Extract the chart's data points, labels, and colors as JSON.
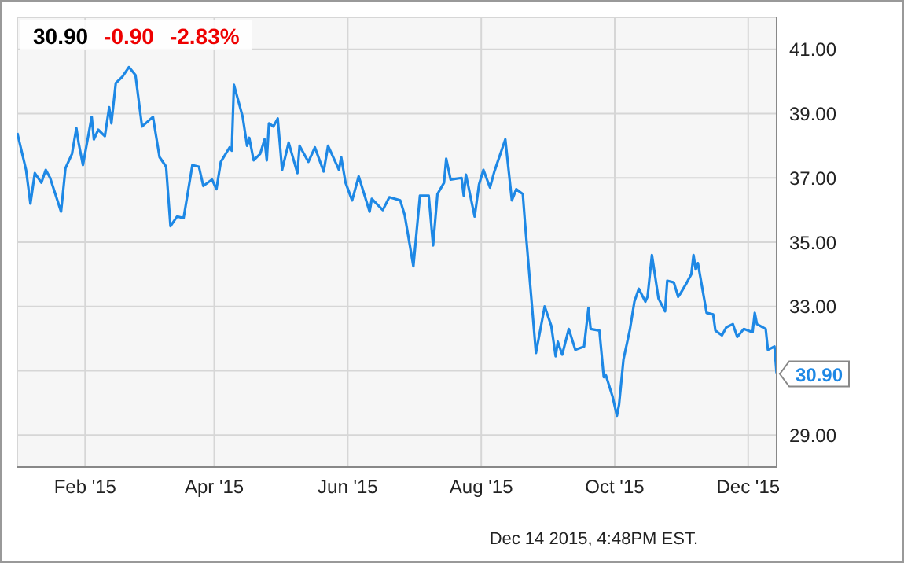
{
  "chart_data": {
    "type": "line",
    "title": "30.90",
    "annotations": [
      "-0.90",
      "-2.83%",
      "Dec 14 2015, 4:48PM EST.",
      {
        "text": "30.90",
        "x": "2015-12-14",
        "y": 30.9
      }
    ],
    "x": [
      "2015-01-01",
      "2015-01-05",
      "2015-01-07",
      "2015-01-09",
      "2015-01-12",
      "2015-01-14",
      "2015-01-16",
      "2015-01-21",
      "2015-01-23",
      "2015-01-26",
      "2015-01-28",
      "2015-01-29",
      "2015-01-31",
      "2015-02-04",
      "2015-02-05",
      "2015-02-07",
      "2015-02-10",
      "2015-02-12",
      "2015-02-13",
      "2015-02-15",
      "2015-02-18",
      "2015-02-21",
      "2015-02-24",
      "2015-02-27",
      "2015-03-04",
      "2015-03-07",
      "2015-03-10",
      "2015-03-12",
      "2015-03-15",
      "2015-03-18",
      "2015-03-22",
      "2015-03-25",
      "2015-03-27",
      "2015-03-31",
      "2015-04-02",
      "2015-04-04",
      "2015-04-08",
      "2015-04-09",
      "2015-04-10",
      "2015-04-14",
      "2015-04-16",
      "2015-04-17",
      "2015-04-19",
      "2015-04-22",
      "2015-04-24",
      "2015-04-25",
      "2015-04-26",
      "2015-04-28",
      "2015-04-30",
      "2015-05-02",
      "2015-05-05",
      "2015-05-09",
      "2015-05-10",
      "2015-05-14",
      "2015-05-17",
      "2015-05-21",
      "2015-05-23",
      "2015-05-28",
      "2015-05-29",
      "2015-05-31",
      "2015-06-03",
      "2015-06-06",
      "2015-06-11",
      "2015-06-12",
      "2015-06-17",
      "2015-06-20",
      "2015-06-25",
      "2015-06-27",
      "2015-07-01",
      "2015-07-04",
      "2015-07-08",
      "2015-07-10",
      "2015-07-12",
      "2015-07-15",
      "2015-07-16",
      "2015-07-18",
      "2015-07-23",
      "2015-07-24",
      "2015-07-25",
      "2015-07-29",
      "2015-07-31",
      "2015-08-02",
      "2015-08-05",
      "2015-08-07",
      "2015-08-12",
      "2015-08-15",
      "2015-08-17",
      "2015-08-20",
      "2015-08-21",
      "2015-08-26",
      "2015-08-30",
      "2015-09-02",
      "2015-09-04",
      "2015-09-05",
      "2015-09-07",
      "2015-09-10",
      "2015-09-13",
      "2015-09-17",
      "2015-09-19",
      "2015-09-20",
      "2015-09-24",
      "2015-09-26",
      "2015-09-27",
      "2015-09-30",
      "2015-10-02",
      "2015-10-03",
      "2015-10-05",
      "2015-10-08",
      "2015-10-10",
      "2015-10-12",
      "2015-10-15",
      "2015-10-16",
      "2015-10-18",
      "2015-10-21",
      "2015-10-24",
      "2015-10-25",
      "2015-10-28",
      "2015-10-30",
      "2015-10-31",
      "2015-11-03",
      "2015-11-05",
      "2015-11-06",
      "2015-11-07",
      "2015-11-08",
      "2015-11-12",
      "2015-11-15",
      "2015-11-16",
      "2015-11-19",
      "2015-11-21",
      "2015-11-24",
      "2015-11-26",
      "2015-11-29",
      "2015-12-03",
      "2015-12-04",
      "2015-12-05",
      "2015-12-09",
      "2015-12-10",
      "2015-12-13",
      "2015-12-14"
    ],
    "series": [
      {
        "color": "#1e88e5",
        "values": [
          38.4,
          37.25,
          36.2,
          37.15,
          36.85,
          37.25,
          37.0,
          35.95,
          37.3,
          37.75,
          38.55,
          38.1,
          37.4,
          38.9,
          38.2,
          38.5,
          38.3,
          39.2,
          38.7,
          39.95,
          40.15,
          40.45,
          40.2,
          38.6,
          38.9,
          37.65,
          37.35,
          35.5,
          35.8,
          35.75,
          37.4,
          37.35,
          36.75,
          36.95,
          36.65,
          37.5,
          37.95,
          37.85,
          39.9,
          38.9,
          38.0,
          38.25,
          37.55,
          37.75,
          38.2,
          37.55,
          38.7,
          38.6,
          38.85,
          37.25,
          38.1,
          37.15,
          38.0,
          37.5,
          37.95,
          37.2,
          38.0,
          37.25,
          37.65,
          36.85,
          36.3,
          37.05,
          35.95,
          36.35,
          36.0,
          36.4,
          36.3,
          35.85,
          34.25,
          36.45,
          36.45,
          34.9,
          36.5,
          36.85,
          37.6,
          36.95,
          37.0,
          36.45,
          37.1,
          35.8,
          36.8,
          37.25,
          36.7,
          37.2,
          38.2,
          36.3,
          36.65,
          36.5,
          35.6,
          31.55,
          33.0,
          32.4,
          31.45,
          31.9,
          31.5,
          32.3,
          31.65,
          31.75,
          32.95,
          32.3,
          32.25,
          30.8,
          30.85,
          30.2,
          29.6,
          29.95,
          31.35,
          32.3,
          33.15,
          33.55,
          33.15,
          33.3,
          34.6,
          33.25,
          32.85,
          33.8,
          33.75,
          33.3,
          33.4,
          33.75,
          34.0,
          34.6,
          34.15,
          34.35,
          32.8,
          32.75,
          32.25,
          32.1,
          32.35,
          32.45,
          32.05,
          32.3,
          32.2,
          32.8,
          32.45,
          32.3,
          31.65,
          31.75,
          30.9
        ]
      }
    ],
    "xlim": [
      "2015-01-01",
      "2015-12-14"
    ],
    "xticks": [
      {
        "value": "2015-02-01",
        "label": "Feb '15"
      },
      {
        "value": "2015-04-01",
        "label": "Apr '15"
      },
      {
        "value": "2015-06-01",
        "label": "Jun '15"
      },
      {
        "value": "2015-08-01",
        "label": "Aug '15"
      },
      {
        "value": "2015-10-01",
        "label": "Oct '15"
      },
      {
        "value": "2015-12-01",
        "label": "Dec '15"
      }
    ],
    "ylim": [
      28,
      42
    ],
    "yticks": [
      {
        "value": 29,
        "label": "29.00"
      },
      {
        "value": 31,
        "label": null
      },
      {
        "value": 33,
        "label": "33.00"
      },
      {
        "value": 35,
        "label": "35.00"
      },
      {
        "value": 37,
        "label": "37.00"
      },
      {
        "value": 39,
        "label": "39.00"
      },
      {
        "value": 41,
        "label": "41.00"
      }
    ],
    "grid": true,
    "marker": "none",
    "line_style": "solid"
  }
}
